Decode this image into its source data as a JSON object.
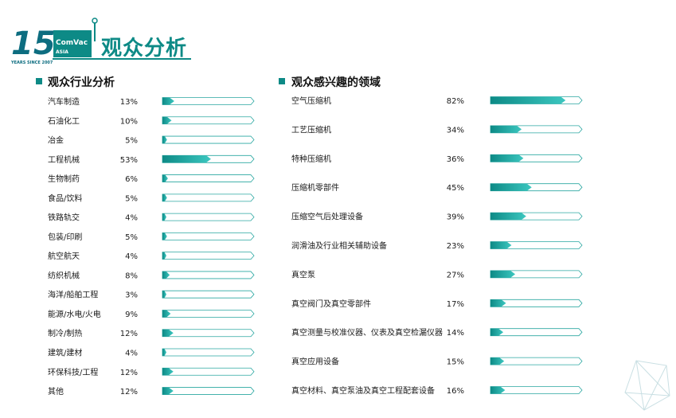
{
  "page": {
    "title": "观众分析",
    "logo": {
      "big_number": "15",
      "years_text": "YEARS",
      "since_text": "SINCE 2007",
      "brand": "ComVac",
      "brand_sub": "ASIA"
    }
  },
  "colors": {
    "accent": "#0d8a86",
    "accent_light": "#3cc7c0",
    "bar_outline": "#2aa7a1"
  },
  "chart_data": [
    {
      "type": "bar",
      "orientation": "horizontal",
      "title": "观众行业分析",
      "value_format": "percent",
      "xlim": [
        0,
        100
      ],
      "categories": [
        "汽车制造",
        "石油化工",
        "冶金",
        "工程机械",
        "生物制药",
        "食品/饮料",
        "铁路轨交",
        "包装/印刷",
        "航空航天",
        "纺织机械",
        "海洋/船舶工程",
        "能源/水电/火电",
        "制冷/制热",
        "建筑/建材",
        "环保科技/工程",
        "其他"
      ],
      "values": [
        13,
        10,
        5,
        53,
        6,
        5,
        4,
        5,
        4,
        8,
        3,
        9,
        12,
        4,
        12,
        12
      ]
    },
    {
      "type": "bar",
      "orientation": "horizontal",
      "title": "观众感兴趣的领域",
      "value_format": "percent",
      "xlim": [
        0,
        100
      ],
      "categories": [
        "空气压缩机",
        "工艺压缩机",
        "特种压缩机",
        "压缩机零部件",
        "压缩空气后处理设备",
        "润滑油及行业相关辅助设备",
        "真空泵",
        "真空阀门及真空零部件",
        "真空测量与校准仪器、仪表及真空检漏仪器",
        "真空应用设备",
        "真空材料、真空泵油及真空工程配套设备"
      ],
      "values": [
        82,
        34,
        36,
        45,
        39,
        23,
        27,
        17,
        14,
        15,
        16
      ]
    }
  ]
}
